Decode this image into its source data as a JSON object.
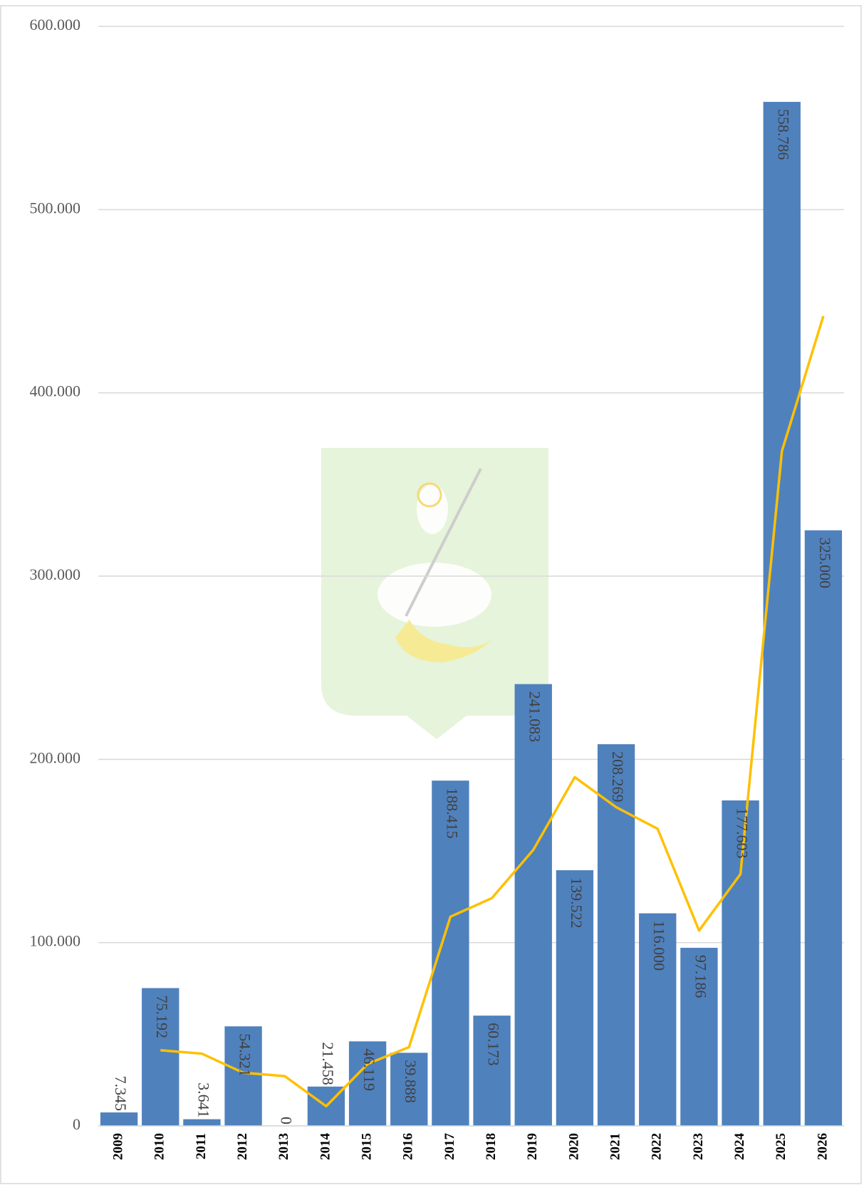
{
  "chart_data": {
    "type": "combo",
    "categories": [
      "2009",
      "2010",
      "2011",
      "2012",
      "2013",
      "2014",
      "2015",
      "2016",
      "2017",
      "2018",
      "2019",
      "2020",
      "2021",
      "2022",
      "2023",
      "2024",
      "2025",
      "2026"
    ],
    "series": [
      {
        "type": "bar",
        "color": "#4f81bd",
        "values": [
          7345,
          75192,
          3641,
          54321,
          0,
          21458,
          46119,
          39888,
          188415,
          60173,
          241083,
          139522,
          208269,
          116000,
          97186,
          177603,
          558786,
          325000
        ],
        "value_labels": [
          "7.345",
          "75.192",
          "3.641",
          "54.321",
          "0",
          "21.458",
          "46.119",
          "39.888",
          "188.415",
          "60.173",
          "241.083",
          "139.522",
          "208.269",
          "116.000",
          "97.186",
          "177.603",
          "558.786",
          "325.000"
        ]
      },
      {
        "type": "line",
        "color": "#ffc000",
        "values": [
          null,
          41268.5,
          39416.5,
          28981,
          27160.5,
          10729,
          33788.5,
          43003.5,
          114151.5,
          124294,
          150628,
          190302.5,
          173895.5,
          162134.5,
          106593,
          137394.5,
          368194.5,
          441893
        ]
      }
    ],
    "ylim": [
      0,
      600000
    ],
    "yticks": [
      0,
      {
        "value": 100000,
        "label": "100.000"
      },
      {
        "value": 200000,
        "label": "200.000"
      },
      {
        "value": 300000,
        "label": "300.000"
      },
      {
        "value": 400000,
        "label": "400.000"
      },
      {
        "value": 500000,
        "label": "500.000"
      },
      {
        "value": 600000,
        "label": "600.000"
      }
    ],
    "grid": true
  }
}
